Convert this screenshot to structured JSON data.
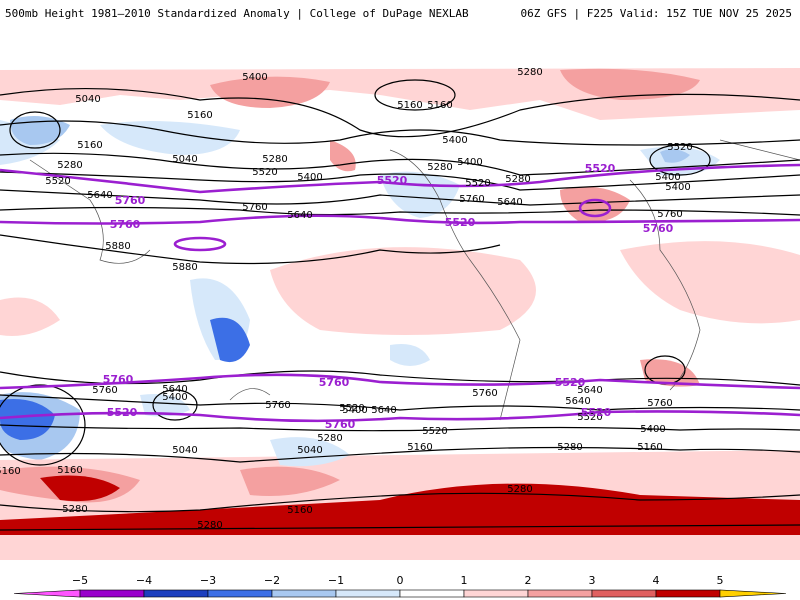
{
  "header": {
    "title": "500mb Height 1981–2010 Standardized Anomaly | College of DuPage NEXLAB",
    "run_info": "06Z GFS | F225 Valid: 15Z TUE NOV 25 2025"
  },
  "colorbar": {
    "ticks": [
      "−5",
      "−4",
      "−3",
      "−2",
      "−1",
      "0",
      "1",
      "2",
      "3",
      "4",
      "5"
    ],
    "colors": [
      "#9900cc",
      "#1c3fbf",
      "#3c6fe6",
      "#a8c8f0",
      "#d6e8fa",
      "#ffffff",
      "#ffd5d5",
      "#f4a0a0",
      "#e06060",
      "#c00000",
      "#ff9900"
    ],
    "end_low_color": "#ff55ff",
    "end_high_color": "#ffd000"
  },
  "contour_labels": {
    "black": [
      "5400",
      "5040",
      "5160",
      "5280",
      "5160",
      "5040",
      "5160",
      "5280",
      "5520",
      "5400",
      "5280",
      "5520",
      "5400",
      "5280",
      "5640",
      "5760",
      "5640",
      "5160",
      "5400",
      "5400",
      "5520",
      "5640",
      "5760",
      "5880",
      "5880",
      "5280",
      "5400",
      "5520",
      "5760",
      "5400",
      "5640",
      "5760",
      "5160",
      "5040",
      "5280",
      "5400",
      "5520",
      "5640",
      "5640",
      "5520",
      "5280",
      "5160",
      "5040",
      "5160",
      "5760",
      "5160",
      "5280",
      "5280",
      "5280",
      "5160",
      "5400",
      "5520",
      "5640",
      "5760",
      "5760"
    ],
    "purple": [
      "5520",
      "5760",
      "5520",
      "5760",
      "5520",
      "5760",
      "5760",
      "5760",
      "5520",
      "5520",
      "5760",
      "5520"
    ]
  }
}
